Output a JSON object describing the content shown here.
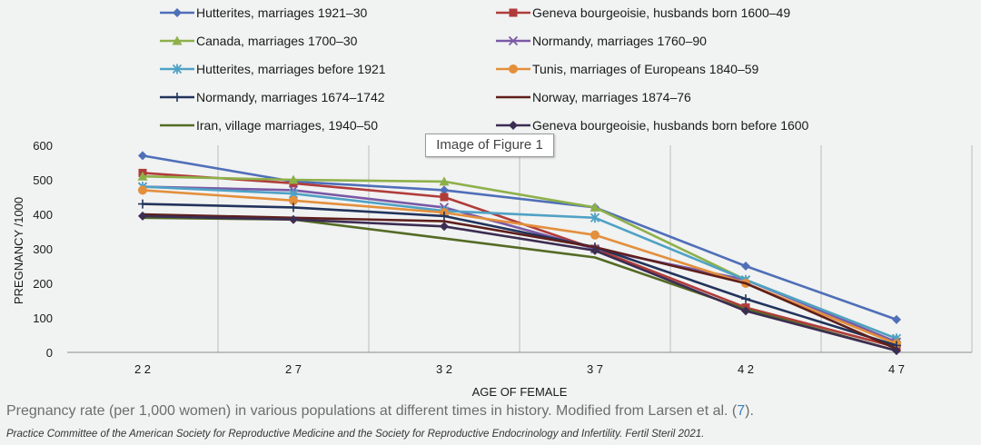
{
  "chart_data": {
    "type": "line",
    "x": [
      22,
      27,
      32,
      37,
      42,
      47
    ],
    "x_tick_labels": [
      "2 2",
      "2 7",
      "3 2",
      "3 7",
      "4 2",
      "4 7"
    ],
    "xlabel": "AGE OF FEMALE",
    "ylabel": "PREGNANCY /1000",
    "ylim": [
      0,
      600
    ],
    "y_ticks": [
      0,
      100,
      200,
      300,
      400,
      500,
      600
    ],
    "grid": "vertical",
    "legend_position": "top",
    "series": [
      {
        "name": "Hutterites, marriages 1921–30",
        "color": "#4f6fb8",
        "marker": "diamond",
        "values": [
          570,
          495,
          470,
          420,
          250,
          95
        ]
      },
      {
        "name": "Geneva bourgeoisie, husbands born 1600–49",
        "color": "#b03c3a",
        "marker": "square",
        "values": [
          520,
          490,
          450,
          300,
          130,
          15
        ]
      },
      {
        "name": "Canada, marriages 1700–30",
        "color": "#8db04a",
        "marker": "triangle",
        "values": [
          510,
          500,
          495,
          420,
          210,
          40
        ]
      },
      {
        "name": "Normandy, marriages 1760–90",
        "color": "#7a59a6",
        "marker": "x",
        "values": [
          480,
          470,
          420,
          300,
          210,
          30
        ]
      },
      {
        "name": "Hutterites, marriages before 1921",
        "color": "#4fa2c5",
        "marker": "star",
        "values": [
          480,
          460,
          410,
          390,
          210,
          40
        ]
      },
      {
        "name": "Tunis, marriages of Europeans 1840–59",
        "color": "#e38f3b",
        "marker": "circle",
        "values": [
          470,
          440,
          405,
          340,
          200,
          25
        ]
      },
      {
        "name": "Normandy, marriages 1674–1742",
        "color": "#22345c",
        "marker": "plus",
        "values": [
          430,
          420,
          395,
          305,
          155,
          20
        ]
      },
      {
        "name": "Norway, marriages 1874–76",
        "color": "#5e1f1c",
        "marker": "none",
        "values": [
          400,
          390,
          380,
          305,
          200,
          10
        ]
      },
      {
        "name": "Iran, village marriages, 1940–50",
        "color": "#546b24",
        "marker": "none",
        "values": [
          390,
          385,
          330,
          275,
          125,
          5
        ]
      },
      {
        "name": "Geneva bourgeoisie, husbands born before 1600",
        "color": "#3c2d52",
        "marker": "diamond",
        "values": [
          395,
          385,
          365,
          295,
          120,
          5
        ]
      }
    ]
  },
  "tooltip": {
    "text": "Image of Figure 1"
  },
  "caption": {
    "text": "Pregnancy rate (per 1,000 women) in various populations at different times in history. Modified from Larsen et al. (",
    "ref": "7",
    "end": ")."
  },
  "credit": "Practice Committee of the American Society for Reproductive Medicine and the Society for Reproductive Endocrinology and Infertility. Fertil Steril 2021."
}
